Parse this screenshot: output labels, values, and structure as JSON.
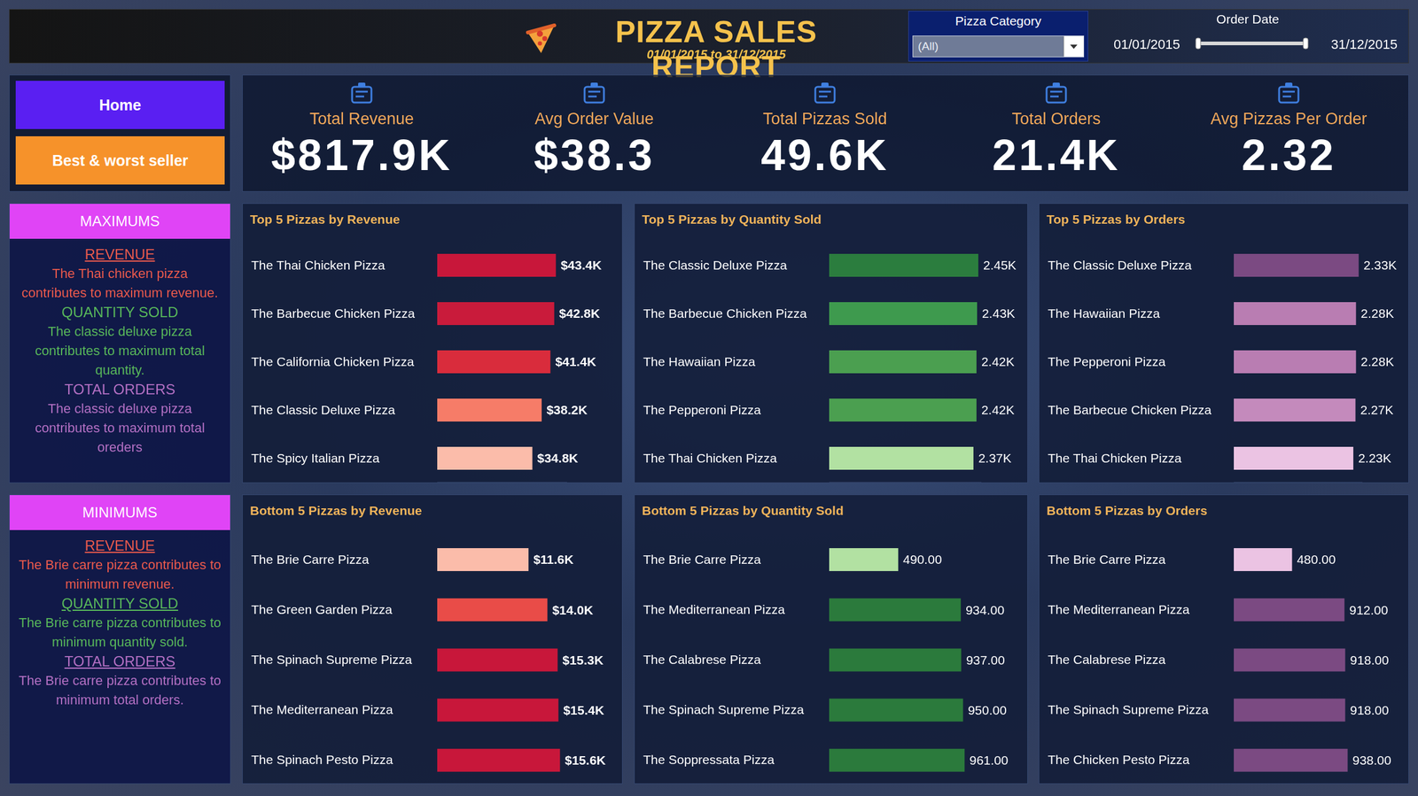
{
  "header": {
    "title": "PIZZA SALES REPORT",
    "subtitle": "01/01/2015 to 31/12/2015",
    "category_filter": {
      "label": "Pizza Category",
      "value": "(All)"
    },
    "date_filter": {
      "label": "Order Date",
      "start": "01/01/2015",
      "end": "31/12/2015"
    }
  },
  "navigation": [
    "Home",
    "Best & worst seller"
  ],
  "kpis": [
    {
      "label": "Total Revenue",
      "value": "$817.9K"
    },
    {
      "label": "Avg Order Value",
      "value": "$38.3"
    },
    {
      "label": "Total Pizzas Sold",
      "value": "49.6K"
    },
    {
      "label": "Total Orders",
      "value": "21.4K"
    },
    {
      "label": "Avg Pizzas Per Order",
      "value": "2.32"
    }
  ],
  "summaries": [
    {
      "title": "MAXIMUMS",
      "items": [
        {
          "heading": "REVENUE",
          "text": "The Thai chicken pizza contributes to maximum revenue."
        },
        {
          "heading": "QUANTITY SOLD",
          "text": "The classic deluxe pizza contributes to maximum total quantity."
        },
        {
          "heading": "TOTAL ORDERS",
          "text": "The classic deluxe pizza contributes to maximum total oreders"
        }
      ]
    },
    {
      "title": "MINIMUMS",
      "items": [
        {
          "heading": "REVENUE",
          "text": "The Brie carre pizza contributes to minimum revenue."
        },
        {
          "heading": "QUANTITY SOLD",
          "text": "The Brie carre pizza contributes to minimum quantity sold."
        },
        {
          "heading": "TOTAL ORDERS",
          "text": "The Brie carre pizza contributes to minimum total orders."
        }
      ]
    }
  ],
  "chart_data": [
    {
      "type": "bar",
      "title": "Top 5 Pizzas by Revenue",
      "orientation": "horizontal",
      "data_labels": true,
      "tick_labels": "y",
      "categories": [
        "The Thai Chicken Pizza",
        "The Barbecue Chicken Pizza",
        "The California Chicken Pizza",
        "The Classic Deluxe Pizza",
        "The Spicy Italian Pizza"
      ],
      "values": [
        43400,
        42800,
        41400,
        38200,
        34800
      ],
      "value_labels": [
        "$43.4K",
        "$42.8K",
        "$41.4K",
        "$38.2K",
        "$34.8K"
      ],
      "colors": [
        "#c8173a",
        "#c91b3b",
        "#d92c3c",
        "#f67c68",
        "#fbbcaa"
      ],
      "xlim": [
        0,
        47500
      ]
    },
    {
      "type": "bar",
      "title": "Top 5 Pizzas by Quantity Sold",
      "orientation": "horizontal",
      "data_labels": true,
      "tick_labels": "y",
      "categories": [
        "The Classic Deluxe Pizza",
        "The Barbecue Chicken Pizza",
        "The Hawaiian Pizza",
        "The Pepperoni Pizza",
        "The Thai Chicken Pizza"
      ],
      "values": [
        2450,
        2430,
        2420,
        2420,
        2370
      ],
      "value_labels": [
        "2.45K",
        "2.43K",
        "2.42K",
        "2.42K",
        "2.37K"
      ],
      "colors": [
        "#2b7d3e",
        "#3e9a4e",
        "#4b9f50",
        "#4b9f50",
        "#b2e1a2"
      ],
      "xlim": [
        0,
        2500
      ]
    },
    {
      "type": "bar",
      "title": "Top 5 Pizzas by Orders",
      "orientation": "horizontal",
      "data_labels": true,
      "tick_labels": "y",
      "categories": [
        "The Classic Deluxe Pizza",
        "The Hawaiian Pizza",
        "The Pepperoni Pizza",
        "The Barbecue Chicken Pizza",
        "The Thai Chicken Pizza"
      ],
      "values": [
        2330,
        2280,
        2280,
        2270,
        2230
      ],
      "value_labels": [
        "2.33K",
        "2.28K",
        "2.28K",
        "2.27K",
        "2.23K"
      ],
      "colors": [
        "#7b4a82",
        "#b97db2",
        "#b97db2",
        "#c48abc",
        "#ebc3e3"
      ],
      "xlim": [
        0,
        2400
      ]
    },
    {
      "type": "bar",
      "title": "Bottom 5 Pizzas by Revenue",
      "orientation": "horizontal",
      "data_labels": true,
      "tick_labels": "y",
      "categories": [
        "The Brie Carre Pizza",
        "The Green Garden Pizza",
        "The Spinach Supreme Pizza",
        "The Mediterranean Pizza",
        "The Spinach Pesto Pizza"
      ],
      "values": [
        11600,
        14000,
        15300,
        15400,
        15600
      ],
      "value_labels": [
        "$11.6K",
        "$14.0K",
        "$15.3K",
        "$15.4K",
        "$15.6K"
      ],
      "colors": [
        "#fbbcaa",
        "#e94c48",
        "#c8173a",
        "#c8173a",
        "#c8173a"
      ],
      "xlim": [
        0,
        16500
      ]
    },
    {
      "type": "bar",
      "title": "Bottom 5 Pizzas by Quantity Sold",
      "orientation": "horizontal",
      "data_labels": true,
      "tick_labels": "y",
      "categories": [
        "The Brie Carre Pizza",
        "The Mediterranean Pizza",
        "The Calabrese Pizza",
        "The Spinach Supreme Pizza",
        "The Soppressata Pizza"
      ],
      "values": [
        490,
        934,
        937,
        950,
        961
      ],
      "value_labels": [
        "490.00",
        "934.00",
        "937.00",
        "950.00",
        "961.00"
      ],
      "colors": [
        "#b2e1a2",
        "#2b7a3c",
        "#2b7a3c",
        "#2b7a3c",
        "#2b7a3c"
      ],
      "xlim": [
        0,
        1080
      ]
    },
    {
      "type": "bar",
      "title": "Bottom 5 Pizzas by Orders",
      "orientation": "horizontal",
      "data_labels": true,
      "tick_labels": "y",
      "categories": [
        "The Brie Carre Pizza",
        "The Mediterranean Pizza",
        "The Calabrese Pizza",
        "The Spinach Supreme Pizza",
        "The Chicken Pesto Pizza"
      ],
      "values": [
        480,
        912,
        918,
        918,
        938
      ],
      "value_labels": [
        "480.00",
        "912.00",
        "918.00",
        "918.00",
        "938.00"
      ],
      "colors": [
        "#ebc3e3",
        "#7b4a82",
        "#7b4a82",
        "#7b4a82",
        "#7b4a82"
      ],
      "xlim": [
        0,
        1060
      ]
    }
  ]
}
